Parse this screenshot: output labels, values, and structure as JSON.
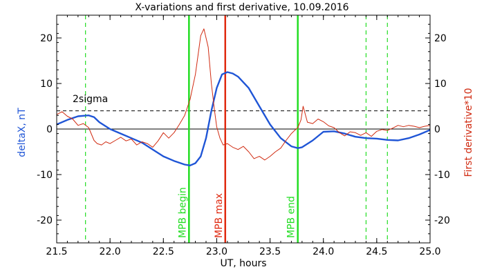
{
  "chart_data": {
    "type": "line",
    "title": "X-variations and first derivative, 10.09.2016",
    "xlabel": "UT, hours",
    "ylabel_left": "deltaX, nT",
    "ylabel_right": "First derivative*10",
    "xlim": [
      21.5,
      25.0
    ],
    "ylim": [
      -25,
      25
    ],
    "xticks": [
      "21.5",
      "22.0",
      "22.5",
      "23.0",
      "23.5",
      "24.0",
      "24.5",
      "25.0"
    ],
    "yticks": [
      "20",
      "10",
      "0",
      "-10",
      "-20"
    ],
    "threshold": {
      "label": "2sigma",
      "y": 4.0
    },
    "colors": {
      "deltaX": "#1f55d6",
      "derivative": "#d02a10",
      "mpb_edge": "#22dd22",
      "mpb_max": "#e02a10",
      "axis": "#000000"
    },
    "vlines": [
      {
        "label": "MPB begin",
        "x": 22.74,
        "style": "solid",
        "color": "#22dd22"
      },
      {
        "label": "MPB max",
        "x": 23.08,
        "style": "solid",
        "color": "#e02a10"
      },
      {
        "label": "MPB end",
        "x": 23.76,
        "style": "solid",
        "color": "#22dd22"
      },
      {
        "label": "",
        "x": 21.77,
        "style": "dashed",
        "color": "#22dd22"
      },
      {
        "label": "",
        "x": 24.4,
        "style": "dashed",
        "color": "#22dd22"
      },
      {
        "label": "",
        "x": 24.6,
        "style": "dashed",
        "color": "#22dd22"
      }
    ],
    "series": [
      {
        "key": "deltaX",
        "axis": "left",
        "x": [
          21.5,
          21.6,
          21.7,
          21.8,
          21.85,
          21.9,
          22.0,
          22.1,
          22.2,
          22.3,
          22.4,
          22.5,
          22.6,
          22.7,
          22.75,
          22.8,
          22.85,
          22.9,
          22.95,
          23.0,
          23.05,
          23.1,
          23.15,
          23.2,
          23.3,
          23.4,
          23.5,
          23.6,
          23.7,
          23.76,
          23.8,
          23.9,
          24.0,
          24.1,
          24.2,
          24.3,
          24.4,
          24.5,
          24.6,
          24.7,
          24.8,
          24.9,
          25.0
        ],
        "y": [
          1.0,
          2.0,
          2.8,
          3.0,
          2.6,
          1.5,
          0.0,
          -1.0,
          -2.0,
          -3.0,
          -4.5,
          -6.0,
          -7.0,
          -7.8,
          -8.0,
          -7.5,
          -6.0,
          -2.0,
          4.0,
          9.0,
          12.0,
          12.5,
          12.2,
          11.5,
          9.0,
          5.0,
          1.0,
          -2.0,
          -3.8,
          -4.2,
          -4.0,
          -2.5,
          -0.6,
          -0.5,
          -1.0,
          -1.7,
          -2.0,
          -2.1,
          -2.4,
          -2.5,
          -2.0,
          -1.2,
          -0.2
        ]
      },
      {
        "key": "derivative",
        "axis": "right",
        "x": [
          21.5,
          21.55,
          21.6,
          21.65,
          21.7,
          21.75,
          21.8,
          21.85,
          21.88,
          21.92,
          21.96,
          22.0,
          22.05,
          22.1,
          22.15,
          22.2,
          22.25,
          22.3,
          22.35,
          22.4,
          22.45,
          22.5,
          22.55,
          22.6,
          22.65,
          22.7,
          22.75,
          22.8,
          22.85,
          22.88,
          22.92,
          22.95,
          22.98,
          23.0,
          23.03,
          23.06,
          23.1,
          23.15,
          23.2,
          23.25,
          23.3,
          23.35,
          23.4,
          23.45,
          23.5,
          23.55,
          23.6,
          23.65,
          23.7,
          23.73,
          23.76,
          23.79,
          23.81,
          23.85,
          23.9,
          23.95,
          24.0,
          24.05,
          24.1,
          24.15,
          24.2,
          24.25,
          24.3,
          24.35,
          24.4,
          24.45,
          24.5,
          24.55,
          24.6,
          24.65,
          24.7,
          24.75,
          24.8,
          24.85,
          24.9,
          24.95,
          25.0
        ],
        "y": [
          3.2,
          3.8,
          2.8,
          2.2,
          0.8,
          1.2,
          0.3,
          -2.5,
          -3.2,
          -3.5,
          -2.8,
          -3.2,
          -2.5,
          -1.8,
          -2.6,
          -2.2,
          -3.5,
          -2.8,
          -3.2,
          -4.0,
          -2.6,
          -0.8,
          -2.0,
          -0.8,
          1.0,
          3.0,
          6.5,
          12.0,
          20.5,
          22.0,
          18.0,
          10.0,
          4.0,
          0.5,
          -2.0,
          -3.5,
          -3.2,
          -4.0,
          -4.5,
          -3.8,
          -5.0,
          -6.5,
          -6.0,
          -6.8,
          -6.0,
          -5.0,
          -4.2,
          -2.5,
          -1.0,
          -0.3,
          0.3,
          2.0,
          5.0,
          1.5,
          1.2,
          2.2,
          1.6,
          0.7,
          0.3,
          -0.8,
          -1.5,
          -0.6,
          -0.8,
          -1.4,
          -0.8,
          -1.6,
          -0.5,
          -0.1,
          -0.3,
          0.2,
          0.8,
          0.5,
          0.8,
          0.6,
          0.3,
          0.6,
          0.8
        ]
      }
    ]
  }
}
